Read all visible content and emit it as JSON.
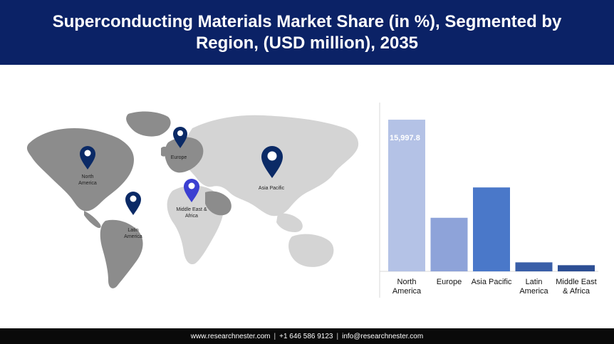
{
  "header": {
    "title": "Superconducting Materials Market Share (in %), Segmented by Region, (USD million), 2035"
  },
  "map": {
    "pins": [
      {
        "id": "north-america",
        "label_lines": [
          "North",
          "America"
        ],
        "color": "#0b2a66"
      },
      {
        "id": "europe",
        "label_lines": [
          "Europe"
        ],
        "color": "#0b2a66"
      },
      {
        "id": "asia-pacific",
        "label_lines": [
          "Asia Pacific"
        ],
        "color": "#0b2a66"
      },
      {
        "id": "middle-east-africa",
        "label_lines": [
          "Middle East &",
          "Africa"
        ],
        "color": "#3b3fd1"
      },
      {
        "id": "latin-america",
        "label_lines": [
          "Latin",
          "America"
        ],
        "color": "#0b2a66"
      }
    ]
  },
  "chart_data": {
    "type": "bar",
    "categories": [
      "North America",
      "Europe",
      "Asia Pacific",
      "Latin America",
      "Middle East & Africa"
    ],
    "category_label_lines": [
      [
        "North",
        "America"
      ],
      [
        "Europe"
      ],
      [
        "Asia Pacific"
      ],
      [
        "Latin",
        "America"
      ],
      [
        "Middle East",
        "& Africa"
      ]
    ],
    "values": [
      15997.8,
      5650,
      8850,
      950,
      650
    ],
    "data_labels": [
      "15,997.8",
      "",
      "",
      "",
      ""
    ],
    "bar_colors": [
      "#b4c2e6",
      "#8ea3d9",
      "#4a78c9",
      "#3a5fa8",
      "#2d4f94"
    ],
    "ylim": [
      0,
      16000
    ],
    "grid": false,
    "legend": "none"
  },
  "footer": {
    "website": "www.researchnester.com",
    "phone": "+1 646 586 9123",
    "email": "info@researchnester.com"
  }
}
